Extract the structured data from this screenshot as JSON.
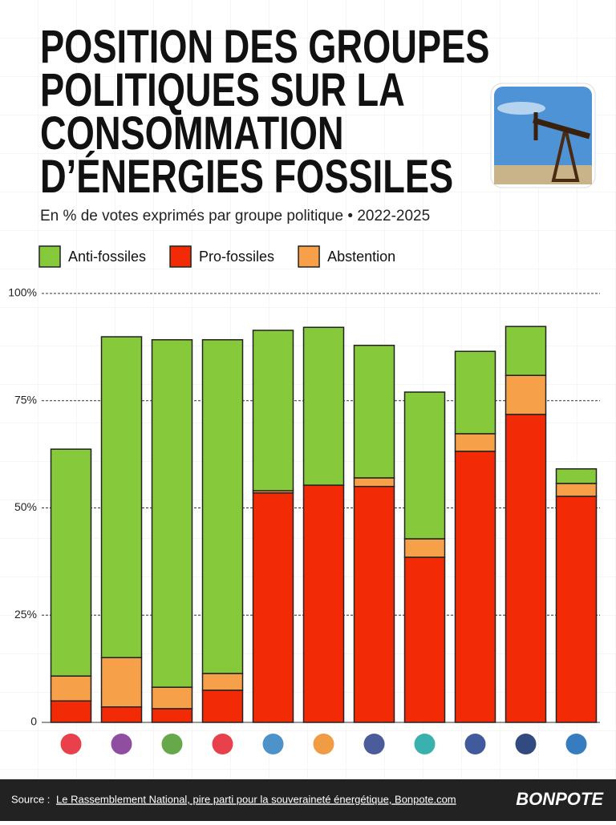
{
  "chart_data": {
    "type": "stacked_bar",
    "title": [
      "POSITION DES GROUPES",
      "POLITIQUES SUR LA",
      "CONSOMMATION",
      "D’ÉNERGIES FOSSILES"
    ],
    "subtitle": "En % de votes exprimés par groupe politique • 2022-2025",
    "categories": [
      null,
      null,
      null,
      null,
      null,
      null,
      null,
      null,
      null,
      null,
      null
    ],
    "series": [
      {
        "name": "Pro-fossiles",
        "color": "#f22a06",
        "values": [
          5.0,
          3.6,
          3.2,
          7.5,
          53.5,
          55.3,
          55.0,
          38.5,
          63.2,
          71.8,
          52.7
        ]
      },
      {
        "name": "Abstention",
        "color": "#f7a04a",
        "values": [
          5.8,
          11.5,
          5.0,
          3.9,
          0.5,
          0,
          2.0,
          4.3,
          4.1,
          9.1,
          3.0
        ]
      },
      {
        "name": "Anti-fossiles",
        "color": "#86c93a",
        "values": [
          52.9,
          74.8,
          81.0,
          77.8,
          37.4,
          36.8,
          30.9,
          34.2,
          19.2,
          11.4,
          3.4
        ]
      }
    ],
    "legend_order": [
      "Anti-fossiles",
      "Pro-fossiles",
      "Abstention"
    ],
    "ylim": [
      0,
      100
    ],
    "yticks": [
      0,
      {
        "value": 25,
        "label": "25%"
      },
      {
        "value": 50,
        "label": "50%"
      },
      {
        "value": 75,
        "label": "75%"
      },
      {
        "value": 100,
        "label": "100%"
      }
    ],
    "grid": true,
    "source_label": "Source :",
    "source_text": "Le Rassemblement National, pire parti pour la souveraineté énergétique, Bonpote.com",
    "brand": "BONPOTE"
  }
}
